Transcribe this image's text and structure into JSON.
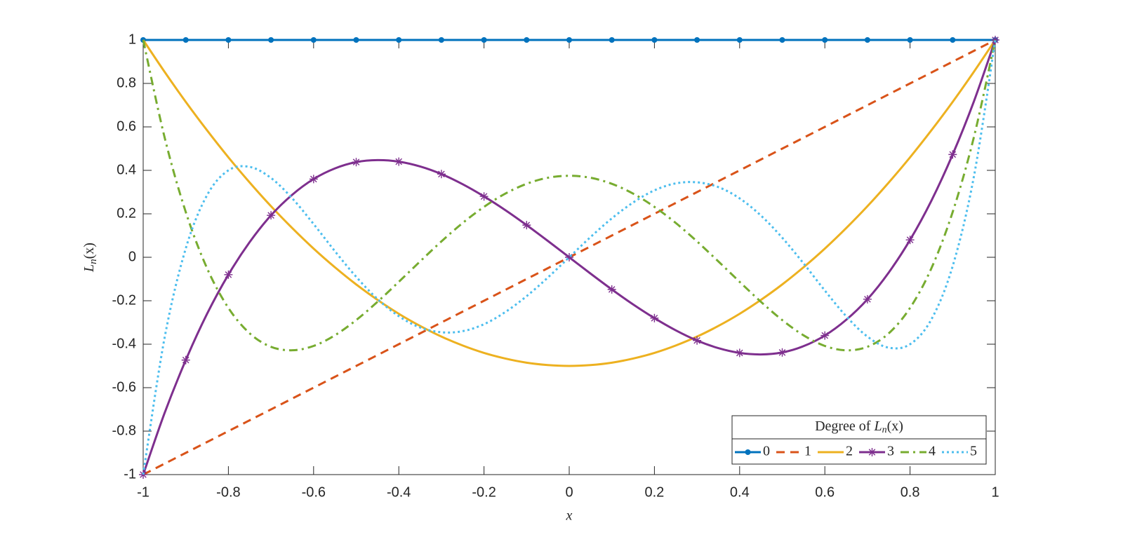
{
  "chart_data": {
    "type": "line",
    "xlabel": "x",
    "ylabel": [
      "L",
      "n",
      "(x)"
    ],
    "legend_title": [
      "Degree of ",
      "L",
      "n",
      "(x)"
    ],
    "legend": "southeast",
    "grid": false,
    "xlim": [
      -1,
      1
    ],
    "ylim": [
      -1,
      1
    ],
    "xticks": [
      -1,
      -0.8,
      -0.6,
      -0.4,
      -0.2,
      0,
      0.2,
      0.4,
      0.6,
      0.8,
      1
    ],
    "yticks": [
      -1,
      -0.8,
      -0.6,
      -0.4,
      -0.2,
      0,
      0.2,
      0.4,
      0.6,
      0.8,
      1
    ],
    "x": [
      -1,
      -0.95,
      -0.9,
      -0.85,
      -0.8,
      -0.75,
      -0.7,
      -0.65,
      -0.6,
      -0.55,
      -0.5,
      -0.45,
      -0.4,
      -0.35,
      -0.3,
      -0.25,
      -0.2,
      -0.15,
      -0.1,
      -0.05,
      0,
      0.05,
      0.1,
      0.15,
      0.2,
      0.25,
      0.3,
      0.35,
      0.4,
      0.45,
      0.5,
      0.55,
      0.6,
      0.65,
      0.7,
      0.75,
      0.8,
      0.85,
      0.9,
      0.95,
      1
    ],
    "series": [
      {
        "name": "0",
        "color": "#0072BD",
        "dash": "solid",
        "marker": "dot",
        "values": [
          1,
          1,
          1,
          1,
          1,
          1,
          1,
          1,
          1,
          1,
          1,
          1,
          1,
          1,
          1,
          1,
          1,
          1,
          1,
          1,
          1,
          1,
          1,
          1,
          1,
          1,
          1,
          1,
          1,
          1,
          1,
          1,
          1,
          1,
          1,
          1,
          1,
          1,
          1,
          1,
          1
        ]
      },
      {
        "name": "1",
        "color": "#D95319",
        "dash": "dashed",
        "marker": "none",
        "values": [
          -1,
          -0.95,
          -0.9,
          -0.85,
          -0.8,
          -0.75,
          -0.7,
          -0.65,
          -0.6,
          -0.55,
          -0.5,
          -0.45,
          -0.4,
          -0.35,
          -0.3,
          -0.25,
          -0.2,
          -0.15,
          -0.1,
          -0.05,
          0,
          0.05,
          0.1,
          0.15,
          0.2,
          0.25,
          0.3,
          0.35,
          0.4,
          0.45,
          0.5,
          0.55,
          0.6,
          0.65,
          0.7,
          0.75,
          0.8,
          0.85,
          0.9,
          0.95,
          1
        ]
      },
      {
        "name": "2",
        "color": "#EDB120",
        "dash": "solid",
        "marker": "none",
        "values": [
          1,
          0.854,
          0.715,
          0.584,
          0.46,
          0.344,
          0.235,
          0.134,
          0.04,
          -0.046,
          -0.125,
          -0.196,
          -0.26,
          -0.316,
          -0.365,
          -0.406,
          -0.44,
          -0.466,
          -0.485,
          -0.496,
          -0.5,
          -0.496,
          -0.485,
          -0.466,
          -0.44,
          -0.406,
          -0.365,
          -0.316,
          -0.26,
          -0.196,
          -0.125,
          -0.046,
          0.04,
          0.134,
          0.235,
          0.344,
          0.46,
          0.584,
          0.715,
          0.854,
          1
        ]
      },
      {
        "name": "3",
        "color": "#7E2F8E",
        "dash": "solid",
        "marker": "star",
        "values": [
          -1,
          -0.718,
          -0.473,
          -0.26,
          -0.08,
          0.07,
          0.193,
          0.288,
          0.36,
          0.409,
          0.438,
          0.447,
          0.44,
          0.418,
          0.383,
          0.336,
          0.28,
          0.217,
          0.148,
          0.075,
          0,
          -0.075,
          -0.148,
          -0.217,
          -0.28,
          -0.336,
          -0.383,
          -0.418,
          -0.44,
          -0.447,
          -0.438,
          -0.409,
          -0.36,
          -0.288,
          -0.193,
          -0.07,
          0.08,
          0.26,
          0.473,
          0.718,
          1
        ]
      },
      {
        "name": "4",
        "color": "#77AC30",
        "dash": "dashdot",
        "marker": "none",
        "values": [
          1,
          0.554,
          0.208,
          -0.051,
          -0.233,
          -0.35,
          -0.412,
          -0.428,
          -0.408,
          -0.359,
          -0.289,
          -0.205,
          -0.113,
          -0.019,
          0.073,
          0.158,
          0.232,
          0.293,
          0.338,
          0.366,
          0.375,
          0.366,
          0.338,
          0.293,
          0.232,
          0.158,
          0.073,
          -0.019,
          -0.113,
          -0.205,
          -0.289,
          -0.359,
          -0.408,
          -0.428,
          -0.412,
          -0.35,
          -0.233,
          -0.051,
          0.208,
          0.554,
          1
        ]
      },
      {
        "name": "5",
        "color": "#4DBEEE",
        "dash": "dotted",
        "marker": "none",
        "values": [
          -1,
          -0.373,
          0.041,
          0.286,
          0.4,
          0.416,
          0.365,
          0.271,
          0.153,
          0.028,
          -0.09,
          -0.192,
          -0.271,
          -0.323,
          -0.345,
          -0.34,
          -0.308,
          -0.252,
          -0.179,
          -0.093,
          0,
          0.093,
          0.179,
          0.252,
          0.308,
          0.34,
          0.345,
          0.323,
          0.271,
          0.192,
          0.09,
          -0.028,
          -0.153,
          -0.271,
          -0.365,
          -0.416,
          -0.4,
          -0.286,
          -0.041,
          0.373,
          1
        ]
      }
    ]
  }
}
